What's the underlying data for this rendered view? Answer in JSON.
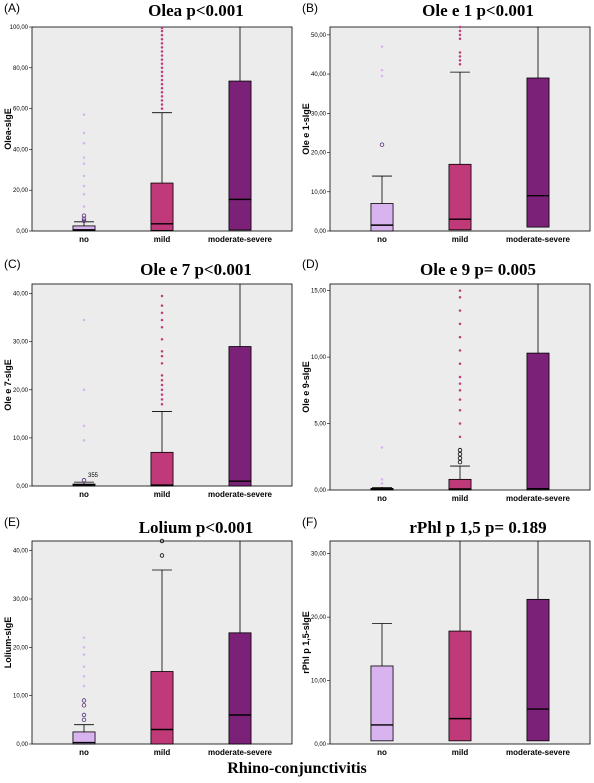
{
  "footer_label": "Rhino-conjunctivitis",
  "colors": {
    "no": "#d9b3f0",
    "mild": "#c03a7a",
    "moderate-severe": "#7b2278",
    "plot_bg": "#ececec"
  },
  "chart_data": [
    {
      "type": "box",
      "panel": "(A)",
      "title": "Olea p<0.001",
      "ylabel": "Olea-sIgE",
      "ylim": [
        0,
        100
      ],
      "yticks": [
        0,
        20,
        40,
        60,
        80,
        100
      ],
      "ytick_labels": [
        "0,00",
        "20,00",
        "40,00",
        "60,00",
        "80,00",
        "100,00"
      ],
      "categories": [
        "no",
        "mild",
        "moderate-severe"
      ],
      "boxes": [
        {
          "q1": 0.2,
          "median": 0.6,
          "q3": 2.5,
          "whisker_low": 0,
          "whisker_high": 4.5,
          "outliers": [
            5,
            6,
            7.5
          ],
          "extremes": [
            12,
            18,
            22,
            27,
            33,
            36,
            43,
            48,
            57
          ]
        },
        {
          "q1": 0.3,
          "median": 3.5,
          "q3": 23.5,
          "whisker_low": 0,
          "whisker_high": 58,
          "outliers": [],
          "extremes": [
            60,
            62,
            64,
            66,
            68,
            70,
            72,
            74,
            76,
            78,
            80,
            82,
            84,
            86,
            88,
            90,
            92,
            94,
            96,
            98,
            99.5
          ]
        },
        {
          "q1": 0.5,
          "median": 15.5,
          "q3": 73.5,
          "whisker_low": 0,
          "whisker_high": 105,
          "outliers": [],
          "extremes": []
        }
      ]
    },
    {
      "type": "box",
      "panel": "(B)",
      "title": "Ole e 1 p<0.001",
      "ylabel": "Ole e 1-sIgE",
      "ylim": [
        0,
        52
      ],
      "yticks": [
        0,
        10,
        20,
        30,
        40,
        50
      ],
      "ytick_labels": [
        "0,00",
        "10,00",
        "20,00",
        "30,00",
        "40,00",
        "50,00"
      ],
      "categories": [
        "no",
        "mild",
        "moderate-severe"
      ],
      "boxes": [
        {
          "q1": 0,
          "median": 1.5,
          "q3": 7,
          "whisker_low": 0,
          "whisker_high": 14,
          "outliers": [
            22
          ],
          "extremes": [
            39.5,
            41,
            47
          ]
        },
        {
          "q1": 0.3,
          "median": 3,
          "q3": 17,
          "whisker_low": 0,
          "whisker_high": 40.5,
          "outliers": [],
          "extremes": [
            42.5,
            43.5,
            44.5,
            45.5,
            49,
            50,
            51,
            52
          ]
        },
        {
          "q1": 1,
          "median": 9,
          "q3": 39,
          "whisker_low": 0,
          "whisker_high": 55,
          "outliers": [],
          "extremes": []
        }
      ]
    },
    {
      "type": "box",
      "panel": "(C)",
      "title": "Ole e 7 p<0.001",
      "ylabel": "Ole e 7-sIgE",
      "ylim": [
        0,
        42
      ],
      "yticks": [
        0,
        10,
        20,
        30,
        40
      ],
      "ytick_labels": [
        "0,00",
        "10,00",
        "20,00",
        "30,00",
        "40,00"
      ],
      "categories": [
        "no",
        "mild",
        "moderate-severe"
      ],
      "case_label": "355",
      "boxes": [
        {
          "q1": 0,
          "median": 0.2,
          "q3": 0.4,
          "whisker_low": 0,
          "whisker_high": 0.8,
          "outliers": [
            1.2
          ],
          "extremes": [
            9.5,
            12.5,
            20,
            34.5
          ]
        },
        {
          "q1": 0,
          "median": 0.2,
          "q3": 7,
          "whisker_low": 0,
          "whisker_high": 15.5,
          "outliers": [],
          "extremes": [
            17,
            18,
            19,
            20,
            21,
            22,
            23,
            25.5,
            27,
            28,
            30.5,
            33,
            34.5,
            36,
            37.5,
            39.5
          ]
        },
        {
          "q1": 0,
          "median": 1,
          "q3": 29,
          "whisker_low": 0,
          "whisker_high": 44,
          "outliers": [],
          "extremes": []
        }
      ]
    },
    {
      "type": "box",
      "panel": "(D)",
      "title": "Ole e 9 p= 0.005",
      "ylabel": "Ole e 9-sIgE",
      "ylim": [
        0,
        15.5
      ],
      "yticks": [
        0,
        5,
        10,
        15
      ],
      "ytick_labels": [
        "0,00",
        "5,00",
        "10,00",
        "15,00"
      ],
      "categories": [
        "no",
        "mild",
        "moderate-severe"
      ],
      "boxes": [
        {
          "q1": 0,
          "median": 0.05,
          "q3": 0.12,
          "whisker_low": 0,
          "whisker_high": 0.2,
          "outliers": [],
          "extremes": [
            0.5,
            0.8,
            3.2
          ]
        },
        {
          "q1": 0,
          "median": 0.08,
          "q3": 0.8,
          "whisker_low": 0,
          "whisker_high": 1.8,
          "outliers": [
            2.1,
            2.4,
            2.7,
            3.0
          ],
          "extremes": [
            4.0,
            5.0,
            6.0,
            6.8,
            7.5,
            8.0,
            8.5,
            9.5,
            10.5,
            11.5,
            12.5,
            13.5,
            14.5,
            15
          ]
        },
        {
          "q1": 0,
          "median": 0.1,
          "q3": 10.3,
          "whisker_low": 0,
          "whisker_high": 16,
          "outliers": [],
          "extremes": []
        }
      ]
    },
    {
      "type": "box",
      "panel": "(E)",
      "title": "Lolium p<0.001",
      "ylabel": "Lolium-sIgE",
      "ylim": [
        0,
        42
      ],
      "yticks": [
        0,
        10,
        20,
        30,
        40
      ],
      "ytick_labels": [
        "0,00",
        "10,00",
        "20,00",
        "30,00",
        "40,00"
      ],
      "categories": [
        "no",
        "mild",
        "moderate-severe"
      ],
      "boxes": [
        {
          "q1": 0,
          "median": 0.3,
          "q3": 2.5,
          "whisker_low": 0,
          "whisker_high": 4,
          "outliers": [
            5,
            6,
            8,
            9
          ],
          "extremes": [
            12,
            14,
            16,
            18.5,
            20,
            22
          ]
        },
        {
          "q1": 0,
          "median": 3,
          "q3": 15,
          "whisker_low": 0,
          "whisker_high": 36,
          "outliers": [
            39,
            42
          ],
          "extremes": []
        },
        {
          "q1": 0,
          "median": 6,
          "q3": 23,
          "whisker_low": 0,
          "whisker_high": 45,
          "outliers": [],
          "extremes": []
        }
      ]
    },
    {
      "type": "box",
      "panel": "(F)",
      "title": "rPhl p 1,5 p= 0.189",
      "ylabel": "rPhl p 1,5-sIgE",
      "ylim": [
        0,
        32
      ],
      "yticks": [
        0,
        10,
        20,
        30
      ],
      "ytick_labels": [
        "0,00",
        "10,00",
        "20,00",
        "30,00"
      ],
      "categories": [
        "no",
        "mild",
        "moderate-severe"
      ],
      "boxes": [
        {
          "q1": 0.5,
          "median": 3,
          "q3": 12.3,
          "whisker_low": 0,
          "whisker_high": 19,
          "outliers": [],
          "extremes": []
        },
        {
          "q1": 0.5,
          "median": 4,
          "q3": 17.8,
          "whisker_low": 0,
          "whisker_high": 34,
          "outliers": [],
          "extremes": []
        },
        {
          "q1": 0.5,
          "median": 5.5,
          "q3": 22.8,
          "whisker_low": 0,
          "whisker_high": 34,
          "outliers": [],
          "extremes": []
        }
      ]
    }
  ]
}
